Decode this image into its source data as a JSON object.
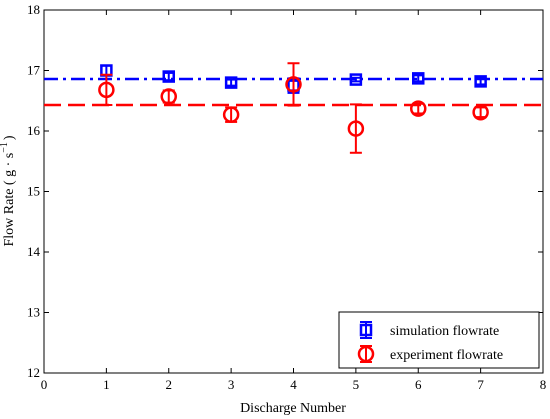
{
  "chart_data": {
    "type": "scatter",
    "title": "",
    "xlabel": "Discharge Number",
    "ylabel_prefix": "Flow Rate ( g · s",
    "ylabel_exp": "−1",
    "ylabel_suffix": ")",
    "xlim": [
      0,
      8
    ],
    "ylim": [
      12,
      18
    ],
    "xticks": [
      0,
      1,
      2,
      3,
      4,
      5,
      6,
      7,
      8
    ],
    "yticks": [
      12,
      13,
      14,
      15,
      16,
      17,
      18
    ],
    "grid": false,
    "legend_position": "bottom-right",
    "series": [
      {
        "name": "simulation flowrate",
        "marker": "square",
        "color": "#0000ff",
        "x": [
          1,
          2,
          3,
          4,
          5,
          6,
          7
        ],
        "y": [
          17.0,
          16.9,
          16.8,
          16.75,
          16.85,
          16.87,
          16.82
        ],
        "err": [
          0.08,
          0.06,
          0.05,
          0.12,
          0.03,
          0.05,
          0.05
        ],
        "mean_line": 16.86,
        "mean_line_style": "dashdot"
      },
      {
        "name": "experiment flowrate",
        "marker": "circle",
        "color": "#ff0000",
        "x": [
          1,
          2,
          3,
          4,
          5,
          6,
          7
        ],
        "y": [
          16.68,
          16.57,
          16.27,
          16.77,
          16.04,
          16.37,
          16.31
        ],
        "err": [
          0.25,
          0.1,
          0.12,
          0.35,
          0.4,
          0.08,
          0.08
        ],
        "mean_line": 16.43,
        "mean_line_style": "dashed"
      }
    ]
  }
}
